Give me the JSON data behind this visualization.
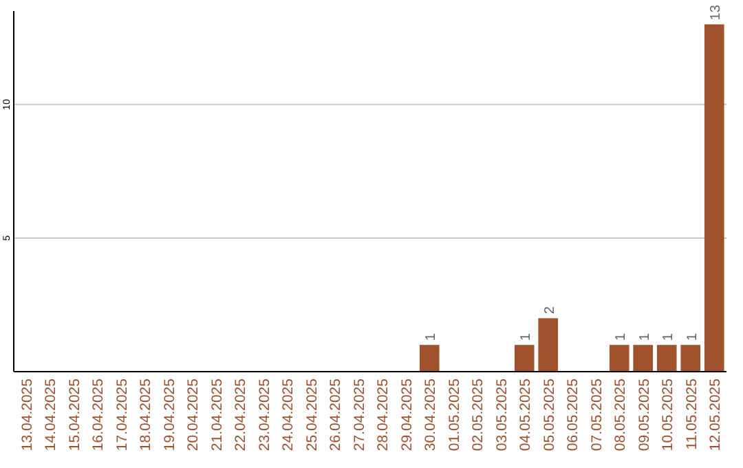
{
  "chart_data": {
    "type": "bar",
    "categories": [
      "13.04.2025",
      "14.04.2025",
      "15.04.2025",
      "16.04.2025",
      "17.04.2025",
      "18.04.2025",
      "19.04.2025",
      "20.04.2025",
      "21.04.2025",
      "22.04.2025",
      "23.04.2025",
      "24.04.2025",
      "25.04.2025",
      "26.04.2025",
      "27.04.2025",
      "28.04.2025",
      "29.04.2025",
      "30.04.2025",
      "01.05.2025",
      "02.05.2025",
      "03.05.2025",
      "04.05.2025",
      "05.05.2025",
      "06.05.2025",
      "07.05.2025",
      "08.05.2025",
      "09.05.2025",
      "10.05.2025",
      "11.05.2025",
      "12.05.2025"
    ],
    "values": [
      0,
      0,
      0,
      0,
      0,
      0,
      0,
      0,
      0,
      0,
      0,
      0,
      0,
      0,
      0,
      0,
      0,
      1,
      0,
      0,
      0,
      1,
      2,
      0,
      0,
      1,
      1,
      1,
      1,
      13
    ],
    "value_labels": [
      null,
      null,
      null,
      null,
      null,
      null,
      null,
      null,
      null,
      null,
      null,
      null,
      null,
      null,
      null,
      null,
      null,
      "1",
      null,
      null,
      null,
      "1",
      "2",
      null,
      null,
      "1",
      "1",
      "1",
      "1",
      "13"
    ],
    "color": "#a0522d",
    "ylim": [
      0,
      13.5
    ],
    "yticks": [
      5,
      10
    ],
    "grid": "y"
  }
}
